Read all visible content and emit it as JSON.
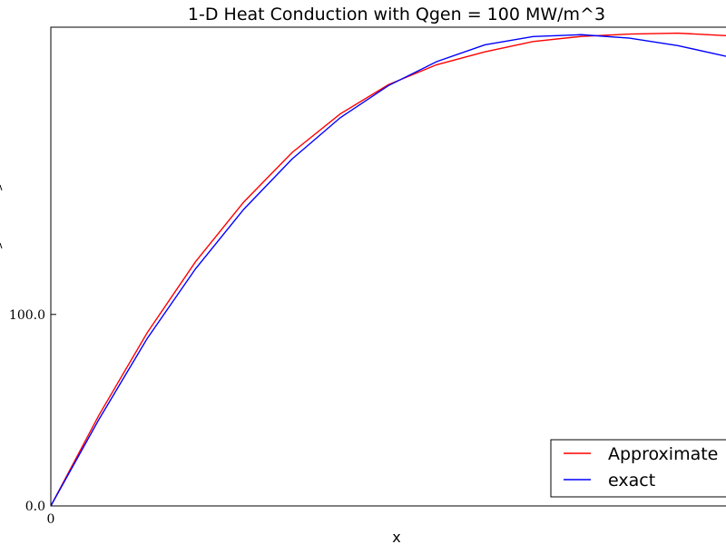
{
  "chart_data": {
    "type": "line",
    "title": "1-D Heat Conduction with Qgen = 100 MW/m^3",
    "xlabel": "x",
    "ylabel": "",
    "xlim": [
      0,
      14
    ],
    "ylim": [
      0,
      250
    ],
    "x_ticks": [
      {
        "value": 0,
        "label": "0"
      }
    ],
    "y_ticks": [
      {
        "value": 0,
        "label": "0.0"
      },
      {
        "value": 100,
        "label": "100.0"
      }
    ],
    "grid": false,
    "legend_position": "bottom-right",
    "series": [
      {
        "name": "Approximate",
        "color": "#ff0000",
        "x": [
          0,
          1,
          2,
          3,
          4,
          5,
          6,
          7,
          8,
          9,
          10,
          11,
          12,
          13,
          14
        ],
        "y": [
          0,
          47.5,
          90.5,
          127.5,
          158.7,
          184.5,
          204.7,
          220.0,
          230.4,
          237.1,
          242.5,
          245.2,
          246.4,
          246.9,
          245.6
        ]
      },
      {
        "name": "exact",
        "color": "#0000ff",
        "x": [
          0,
          1,
          2,
          3,
          4,
          5,
          6,
          7,
          8,
          9,
          10,
          11,
          12,
          13,
          14
        ],
        "y": [
          0,
          45.3,
          87.5,
          123.8,
          154.9,
          181.1,
          202.7,
          219.5,
          232.0,
          240.8,
          245.1,
          246.1,
          244.3,
          240.4,
          234.8
        ]
      }
    ]
  }
}
